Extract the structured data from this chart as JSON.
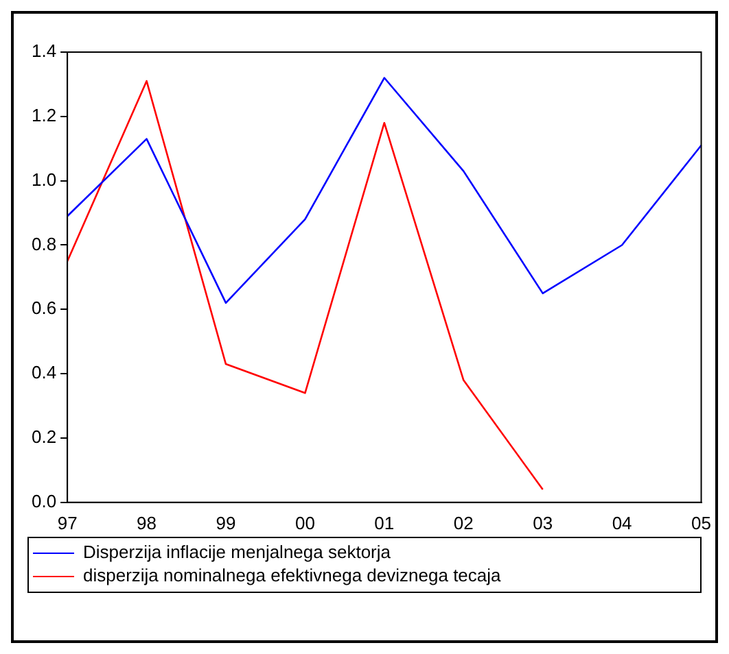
{
  "chart_data": {
    "type": "line",
    "categories": [
      "97",
      "98",
      "99",
      "00",
      "01",
      "02",
      "03",
      "04",
      "05"
    ],
    "series": [
      {
        "name": "Disperzija inflacije menjalnega sektorja",
        "color": "#0000ff",
        "values": [
          0.89,
          1.13,
          0.62,
          0.88,
          1.32,
          1.03,
          0.65,
          0.8,
          1.11
        ]
      },
      {
        "name": "disperzija nominalnega efektivnega deviznega tecaja",
        "color": "#ff0000",
        "values": [
          0.75,
          1.31,
          0.43,
          0.34,
          1.18,
          0.38,
          0.04,
          null,
          null
        ]
      }
    ],
    "ylim": [
      0,
      1.4
    ],
    "yticks": [
      {
        "value": 0,
        "label": "0.0"
      },
      {
        "value": 0.2,
        "label": "0.2"
      },
      {
        "value": 0.4,
        "label": "0.4"
      },
      {
        "value": 0.6,
        "label": "0.6"
      },
      {
        "value": 0.8,
        "label": "0.8"
      },
      {
        "value": 1,
        "label": "1.0"
      },
      {
        "value": 1.2,
        "label": "1.2"
      },
      {
        "value": 1.4,
        "label": "1.4"
      }
    ],
    "grid": false,
    "legend": "bottom",
    "marker": "none",
    "line_style": "solid"
  }
}
